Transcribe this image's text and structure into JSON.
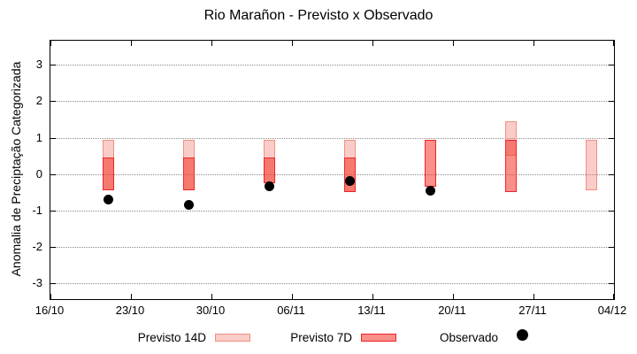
{
  "title": "Rio Marañon - Previsto x Observado",
  "chart_data": {
    "type": "bar",
    "subtype": "range-bar-with-scatter-overlay",
    "title": "Rio Marañon - Previsto x Observado",
    "xlabel": "",
    "ylabel": "Anomalia de Preciptação Categorizada",
    "x_axis": {
      "tick_labels": [
        "16/10",
        "23/10",
        "30/10",
        "06/11",
        "13/11",
        "20/11",
        "27/11",
        "04/12"
      ],
      "tick_days": [
        0,
        7,
        14,
        21,
        28,
        35,
        42,
        49
      ],
      "range_days": [
        0,
        49
      ]
    },
    "y_axis": {
      "tick_labels": [
        "3",
        "2",
        "1",
        "0",
        "-1",
        "-2",
        "-3"
      ],
      "tick_values": [
        3,
        2,
        1,
        0,
        -1,
        -2,
        -3
      ],
      "range": [
        -3.45,
        3.66
      ]
    },
    "grid": {
      "horizontal": "dotted",
      "vertical": "none"
    },
    "legend": {
      "position": "bottom",
      "entries": [
        {
          "label": "Previsto 14D",
          "marker": "box-light"
        },
        {
          "label": "Previsto 7D",
          "marker": "box-red"
        },
        {
          "label": "Observado",
          "marker": "dot-black"
        }
      ]
    },
    "colors": {
      "previsto14_fill": "rgba(240,100,85,0.33)",
      "previsto14_border": "#f09082",
      "previsto7_fill": "rgba(243,55,45,0.56)",
      "previsto7_border": "#f02428",
      "observado": "#000000",
      "grid": "#8a8a8a"
    },
    "series": [
      {
        "name": "Previsto 14D",
        "type": "range_bar",
        "points": [
          {
            "date": "21/10",
            "day": 5,
            "low": -0.45,
            "high": 0.95
          },
          {
            "date": "28/10",
            "day": 12,
            "low": -0.45,
            "high": 0.95
          },
          {
            "date": "04/11",
            "day": 19,
            "low": -0.25,
            "high": 0.95
          },
          {
            "date": "11/11",
            "day": 26,
            "low": -0.5,
            "high": 0.95
          },
          {
            "date": "25/11",
            "day": 40,
            "low": 0.5,
            "high": 1.45
          },
          {
            "date": "02/12",
            "day": 47,
            "low": -0.45,
            "high": 0.95
          }
        ]
      },
      {
        "name": "Previsto 7D",
        "type": "range_bar",
        "points": [
          {
            "date": "21/10",
            "day": 5,
            "low": -0.45,
            "high": 0.45
          },
          {
            "date": "28/10",
            "day": 12,
            "low": -0.45,
            "high": 0.45
          },
          {
            "date": "04/11",
            "day": 19,
            "low": -0.25,
            "high": 0.45
          },
          {
            "date": "11/11",
            "day": 26,
            "low": -0.5,
            "high": 0.45
          },
          {
            "date": "18/11",
            "day": 33,
            "low": -0.35,
            "high": 0.95
          },
          {
            "date": "25/11",
            "day": 40,
            "low": -0.5,
            "high": 0.95
          }
        ]
      },
      {
        "name": "Observado",
        "type": "scatter",
        "points": [
          {
            "date": "21/10",
            "day": 5,
            "value": -0.7
          },
          {
            "date": "28/10",
            "day": 12,
            "value": -0.85
          },
          {
            "date": "04/11",
            "day": 19,
            "value": -0.35
          },
          {
            "date": "11/11",
            "day": 26,
            "value": -0.2
          },
          {
            "date": "18/11",
            "day": 33,
            "value": -0.45
          }
        ]
      }
    ]
  }
}
